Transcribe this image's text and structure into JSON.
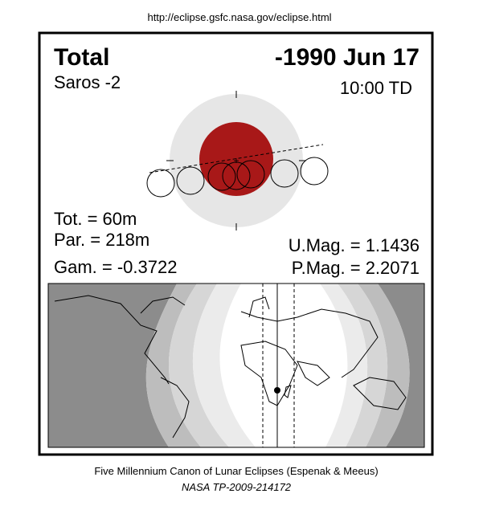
{
  "header": {
    "url": "http://eclipse.gsfc.nasa.gov/eclipse.html"
  },
  "panel": {
    "type": "Total",
    "date": "-1990 Jun 17",
    "saros": "Saros  -2",
    "time": "10:00 TD"
  },
  "stats": {
    "total": "Tot. =  60m",
    "partial": "Par. = 218m",
    "gamma": "Gam. = -0.3722",
    "umbral_mag": "U.Mag. = 1.1436",
    "penumbral_mag": "P.Mag. = 2.2071"
  },
  "footer": {
    "line1": "Five Millennium Canon of Lunar Eclipses (Espenak & Meeus)",
    "line2": "NASA TP-2009-214172"
  }
}
